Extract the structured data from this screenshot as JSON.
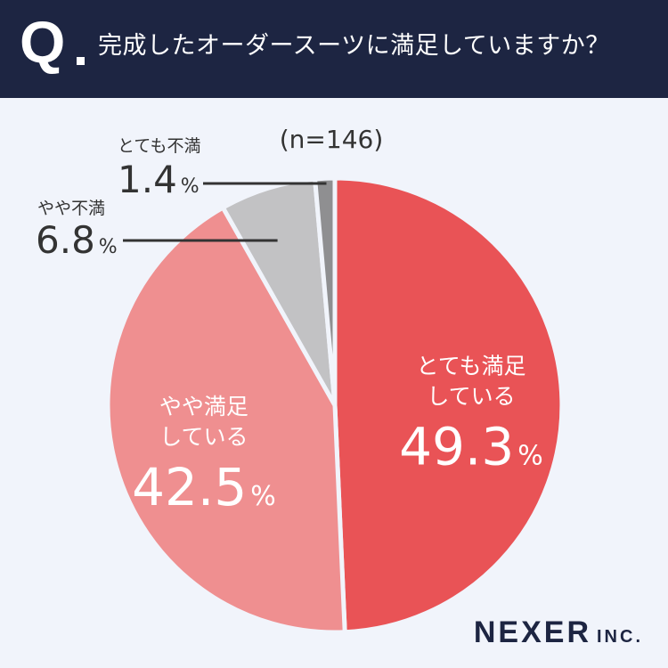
{
  "header": {
    "q_letter": "Q",
    "question": "完成したオーダースーツに満足していますか？"
  },
  "chart_data": {
    "type": "pie",
    "note": "(n=146)",
    "unit": "%",
    "categories": [
      "とても満足している",
      "やや満足している",
      "やや不満",
      "とても不満"
    ],
    "values": [
      49.3,
      42.5,
      6.8,
      1.4
    ],
    "colors": [
      "#e95356",
      "#ef8f90",
      "#c2c2c4",
      "#8f8f91"
    ],
    "inside_labels": [
      [
        "とても満足",
        "している"
      ],
      [
        "やや満足",
        "している"
      ]
    ],
    "outside_labels": [
      "やや不満",
      "とても不満"
    ]
  },
  "brand": {
    "name": "NEXER",
    "suffix": "INC."
  }
}
